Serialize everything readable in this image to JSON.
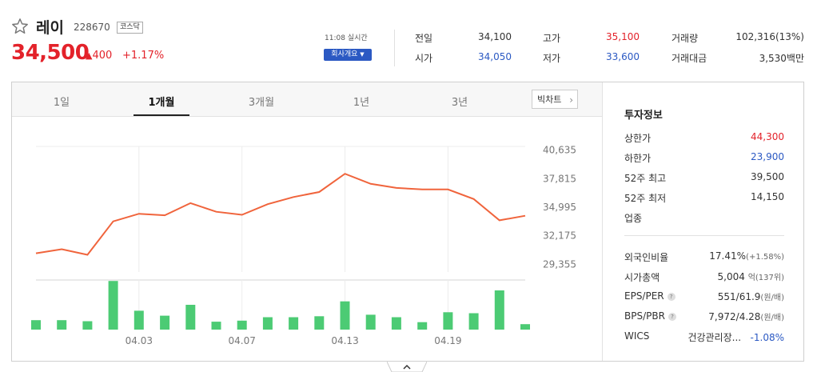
{
  "stock": {
    "name": "레이",
    "code": "228670",
    "market": "코스닥",
    "price": "34,500",
    "change": "400",
    "change_pct": "+1.17%",
    "realtime": "11:08 실시간",
    "company_btn": "회사개요"
  },
  "quote": {
    "prev_close_label": "전일",
    "prev_close": "34,100",
    "open_label": "시가",
    "open": "34,050",
    "high_label": "고가",
    "high": "35,100",
    "low_label": "저가",
    "low": "33,600",
    "volume_label": "거래량",
    "volume": "102,316(13%)",
    "amount_label": "거래대금",
    "amount": "3,530백만"
  },
  "tabs": [
    "1일",
    "1개월",
    "3개월",
    "1년",
    "3년"
  ],
  "active_tab": "1개월",
  "big_chart_label": "빅차트",
  "colors": {
    "up": "#e3222a",
    "down": "#2b59c3",
    "line": "#f0643c",
    "volume": "#4ccb74"
  },
  "chart_data": {
    "type": "line",
    "title": "",
    "y_ticks": [
      "40,635",
      "37,815",
      "34,995",
      "32,175",
      "29,355"
    ],
    "y_tick_values": [
      40635,
      37815,
      34995,
      32175,
      29355
    ],
    "ylim": [
      28600,
      41000
    ],
    "x_labels": [
      "04.03",
      "04.07",
      "04.13",
      "04.19"
    ],
    "price": [
      30450,
      30850,
      30300,
      33600,
      34350,
      34200,
      35400,
      34550,
      34250,
      35300,
      36000,
      36500,
      38300,
      37300,
      36900,
      36750,
      36750,
      35800,
      33700,
      34150
    ],
    "volume_ratio": [
      0.19,
      0.19,
      0.17,
      0.98,
      0.38,
      0.28,
      0.5,
      0.16,
      0.18,
      0.25,
      0.25,
      0.27,
      0.57,
      0.3,
      0.25,
      0.15,
      0.35,
      0.33,
      0.79,
      0.11
    ],
    "grid": true
  },
  "invest": {
    "title": "투자정보",
    "upper_label": "상한가",
    "upper": "44,300",
    "lower_label": "하한가",
    "lower": "23,900",
    "high52_label": "52주 최고",
    "high52": "39,500",
    "low52_label": "52주 최저",
    "low52": "14,150",
    "sector_label": "업종",
    "foreign_label": "외국인비율",
    "foreign": "17.41%",
    "foreign_chg": "(+1.58%)",
    "mcap_label": "시가총액",
    "mcap": "5,004",
    "mcap_unit": "억(137위)",
    "eps_label": "EPS/PER",
    "eps": "551/61.9",
    "eps_unit": "(원/배)",
    "bps_label": "BPS/PBR",
    "bps": "7,972/4.28",
    "bps_unit": "(원/배)",
    "wics_label": "WICS",
    "wics": "건강관리장...",
    "wics_chg": "-1.08%",
    "help_glyph": "?"
  }
}
